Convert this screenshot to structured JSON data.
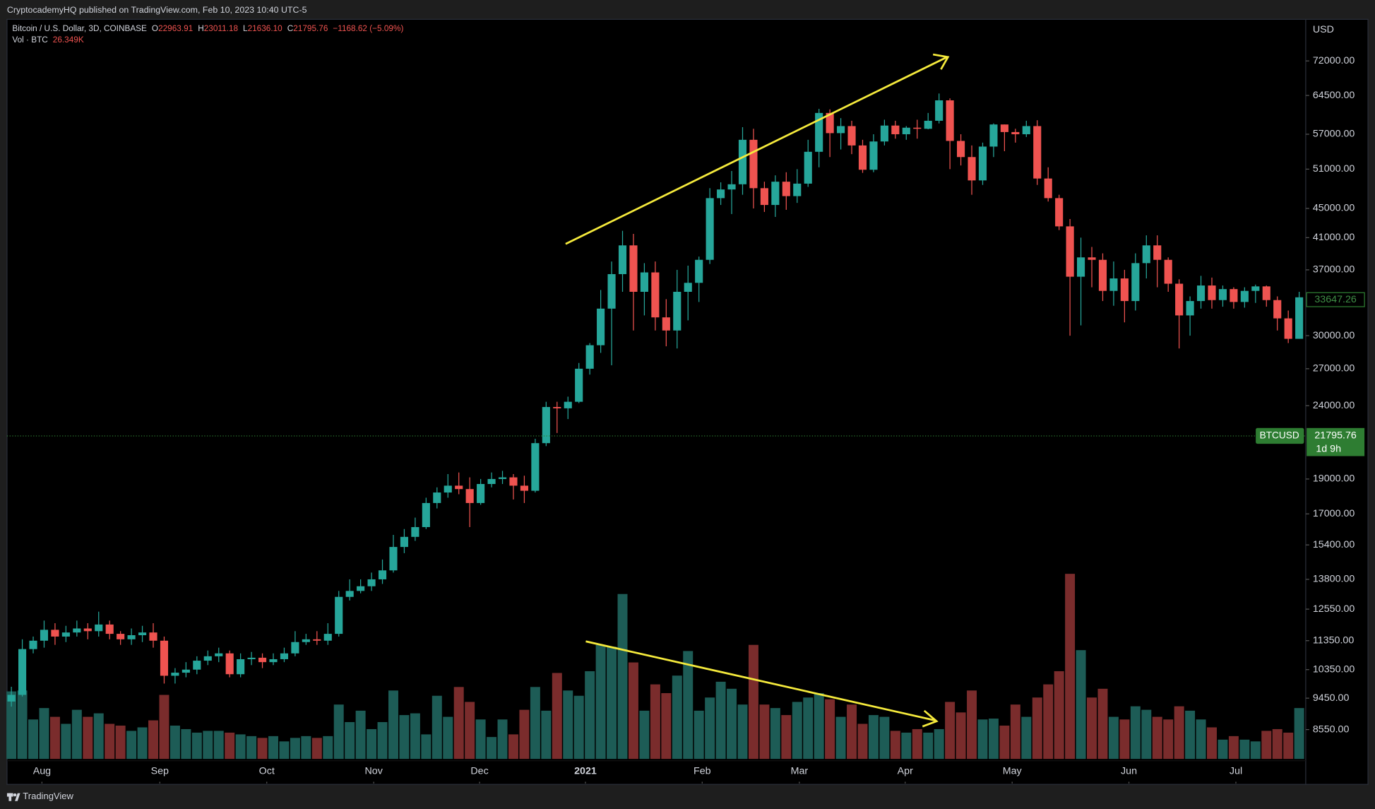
{
  "chart_data": {
    "type": "candlestick",
    "publisher_line": "CryptocademyHQ published on TradingView.com, Feb 10, 2023 10:40 UTC-5",
    "legend": {
      "title": "Bitcoin / U.S. Dollar, 3D, COINBASE",
      "open_key": "O",
      "open": "22963.91",
      "high_key": "H",
      "high": "23011.18",
      "low_key": "L",
      "low": "21636.10",
      "close_key": "C",
      "close": "21795.76",
      "change": "−1168.62 (−5.09%)",
      "volume_title": "Vol · BTC",
      "volume_value": "26.349K"
    },
    "currency": "USD",
    "symbol": "BTCUSD",
    "last_price": 21795.76,
    "countdown": "1d 9h",
    "crosshair_price": 33647.26,
    "footer": "TradingView",
    "log_scale": true,
    "up_color": "#26a69a",
    "down_color": "#ef5350",
    "volume_up_color": "#1d5c56",
    "volume_down_color": "#7a2c2c",
    "xlim": [
      -0.4,
      118.6
    ],
    "xticks": [
      {
        "value": 2.8,
        "label": "Aug"
      },
      {
        "value": 13.6,
        "label": "Sep"
      },
      {
        "value": 23.4,
        "label": "Oct"
      },
      {
        "value": 33.2,
        "label": "Nov"
      },
      {
        "value": 42.9,
        "label": "Dec"
      },
      {
        "value": 52.6,
        "label": "2021"
      },
      {
        "value": 63.3,
        "label": "Feb"
      },
      {
        "value": 72.2,
        "label": "Mar"
      },
      {
        "value": 81.9,
        "label": "Apr"
      },
      {
        "value": 91.7,
        "label": "May"
      },
      {
        "value": 102.4,
        "label": "Jun"
      },
      {
        "value": 112.2,
        "label": "Jul"
      }
    ],
    "ylim": [
      7200,
      82200
    ],
    "yticks": [
      {
        "value": 72000,
        "label": "72000.00"
      },
      {
        "value": 64500,
        "label": "64500.00"
      },
      {
        "value": 57000,
        "label": "57000.00"
      },
      {
        "value": 51000,
        "label": "51000.00"
      },
      {
        "value": 45000,
        "label": "45000.00"
      },
      {
        "value": 41000,
        "label": "41000.00"
      },
      {
        "value": 37000,
        "label": "37000.00"
      },
      {
        "value": 30000,
        "label": "30000.00"
      },
      {
        "value": 27000,
        "label": "27000.00"
      },
      {
        "value": 24000,
        "label": "24000.00"
      },
      {
        "value": 19000,
        "label": "19000.00"
      },
      {
        "value": 17000,
        "label": "17000.00"
      },
      {
        "value": 15400,
        "label": "15400.00"
      },
      {
        "value": 13800,
        "label": "13800.00"
      },
      {
        "value": 12550,
        "label": "12550.00"
      },
      {
        "value": 11350,
        "label": "11350.00"
      },
      {
        "value": 10350,
        "label": "10350.00"
      },
      {
        "value": 9450,
        "label": "9450.00"
      },
      {
        "value": 8550,
        "label": "8550.00"
      }
    ],
    "open": [
      9350,
      9550,
      11050,
      11350,
      11750,
      11500,
      11650,
      11800,
      11700,
      11950,
      11600,
      11400,
      11550,
      11650,
      11350,
      10150,
      10250,
      10350,
      10650,
      10800,
      10900,
      10200,
      10700,
      10750,
      10600,
      10700,
      10900,
      11300,
      11400,
      11350,
      11600,
      13050,
      13300,
      13500,
      13800,
      14200,
      15300,
      15800,
      16300,
      17600,
      18200,
      18600,
      18400,
      17600,
      18700,
      19000,
      19100,
      18600,
      18300,
      21300,
      23900,
      23800,
      24300,
      27000,
      29100,
      32700,
      36500,
      40000,
      34500,
      36700,
      31800,
      30500,
      34500,
      35500,
      38200,
      46500,
      47800,
      48600,
      56000,
      48000,
      45500,
      49000,
      46800,
      48700,
      53900,
      61000,
      57200,
      58500,
      55000,
      50900,
      55700,
      58600,
      57000,
      58200,
      58000,
      59500,
      63500,
      55800,
      53000,
      49200,
      54800,
      58800,
      57400,
      57000,
      58500,
      49500,
      46500,
      42500,
      36200,
      38500,
      38200,
      34600,
      36000,
      33500,
      37800,
      40000,
      38200,
      35400,
      32000,
      33500,
      35200,
      33600,
      34800,
      33400,
      34600,
      35100,
      33600,
      31700,
      29700
    ],
    "high": [
      9800,
      11400,
      11500,
      12100,
      12000,
      11900,
      12100,
      12000,
      12450,
      12100,
      11700,
      11800,
      11900,
      12000,
      11500,
      10400,
      10600,
      10800,
      11000,
      11100,
      11000,
      10900,
      10950,
      10900,
      10900,
      11100,
      11700,
      11600,
      11700,
      12000,
      13300,
      13800,
      13800,
      14100,
      14700,
      15900,
      16200,
      16800,
      17900,
      18500,
      19300,
      19400,
      19100,
      19000,
      19400,
      19500,
      19300,
      19200,
      21600,
      24300,
      24300,
      24700,
      27500,
      29300,
      34700,
      38000,
      41900,
      41500,
      37800,
      38000,
      33700,
      37000,
      37500,
      38600,
      48000,
      48900,
      50700,
      58300,
      58000,
      49000,
      50000,
      50500,
      51000,
      56000,
      61800,
      61700,
      60000,
      59500,
      56000,
      57000,
      59700,
      59500,
      58500,
      59700,
      61000,
      64900,
      63900,
      57000,
      55000,
      55500,
      59000,
      58800,
      58000,
      59500,
      59600,
      51300,
      47000,
      43500,
      41000,
      39800,
      39000,
      38000,
      37000,
      39000,
      41300,
      41300,
      38500,
      35900,
      34000,
      36300,
      36100,
      35200,
      35000,
      35000,
      35300,
      35200,
      34000,
      32500,
      34500
    ],
    "low": [
      9200,
      9500,
      10900,
      11100,
      11200,
      11300,
      11500,
      11400,
      11500,
      11400,
      11200,
      11200,
      11300,
      11100,
      9900,
      9900,
      10100,
      10200,
      10500,
      10600,
      10100,
      10100,
      10500,
      10400,
      10500,
      10600,
      10800,
      11200,
      11200,
      11200,
      11500,
      12900,
      13200,
      13300,
      13600,
      14100,
      15000,
      15600,
      16200,
      17300,
      17900,
      18100,
      16300,
      17500,
      18500,
      18700,
      17800,
      17600,
      18200,
      21100,
      22000,
      23000,
      24200,
      26500,
      28400,
      27300,
      34500,
      30500,
      32000,
      30500,
      29000,
      28800,
      31500,
      33400,
      37700,
      45500,
      44200,
      47000,
      45000,
      44500,
      43800,
      44800,
      45800,
      48200,
      51300,
      53000,
      54300,
      53500,
      50400,
      50500,
      55000,
      56200,
      56000,
      56200,
      57900,
      59000,
      51000,
      51600,
      47000,
      48500,
      53000,
      54000,
      55500,
      56500,
      48500,
      46000,
      42000,
      30000,
      31000,
      35000,
      33500,
      33000,
      31300,
      32500,
      36000,
      35000,
      34500,
      28800,
      30000,
      32700,
      32700,
      32900,
      32700,
      32800,
      33300,
      32900,
      30500,
      29300,
      29700
    ],
    "close": [
      9550,
      11050,
      11350,
      11750,
      11500,
      11650,
      11800,
      11700,
      11950,
      11600,
      11400,
      11550,
      11650,
      11350,
      10150,
      10250,
      10350,
      10650,
      10800,
      10900,
      10200,
      10700,
      10750,
      10600,
      10700,
      10900,
      11300,
      11400,
      11350,
      11600,
      13050,
      13300,
      13500,
      13800,
      14200,
      15300,
      15800,
      16300,
      17600,
      18200,
      18600,
      18400,
      17600,
      18700,
      19000,
      19100,
      18600,
      18300,
      21300,
      23900,
      23800,
      24300,
      27000,
      29100,
      32700,
      36500,
      40000,
      34500,
      36700,
      31800,
      30500,
      34500,
      35500,
      38200,
      46500,
      47800,
      48600,
      56000,
      48000,
      45500,
      49000,
      46800,
      48700,
      53900,
      61000,
      57200,
      58500,
      55000,
      50900,
      55700,
      58600,
      57000,
      58200,
      58000,
      59500,
      63500,
      55800,
      53000,
      49200,
      54800,
      58800,
      57400,
      57000,
      58500,
      49500,
      46500,
      42500,
      36200,
      38500,
      38200,
      34600,
      36000,
      33500,
      37800,
      40000,
      38200,
      35400,
      32000,
      33500,
      35200,
      33600,
      34800,
      33400,
      34600,
      35100,
      33600,
      31700,
      29700,
      33900
    ],
    "volume": [
      38500,
      39000,
      22500,
      29000,
      24000,
      20000,
      28000,
      24000,
      26000,
      20000,
      19000,
      16000,
      18000,
      22000,
      36500,
      19000,
      17000,
      15000,
      16000,
      16000,
      15000,
      14000,
      13000,
      12000,
      13000,
      10000,
      12000,
      13000,
      12000,
      13000,
      31000,
      21000,
      27500,
      17000,
      21000,
      39000,
      25000,
      26000,
      14000,
      36000,
      24000,
      41000,
      32500,
      22500,
      12500,
      22500,
      14000,
      28000,
      41000,
      27500,
      49000,
      39000,
      36000,
      50000,
      65000,
      64000,
      94000,
      55000,
      27500,
      42500,
      37500,
      47500,
      61500,
      27500,
      35000,
      44000,
      40000,
      31000,
      65000,
      31000,
      29000,
      25000,
      32500,
      35000,
      37500,
      34000,
      24000,
      31000,
      20000,
      25000,
      24000,
      16000,
      15000,
      17000,
      15000,
      17000,
      32500,
      26500,
      39000,
      22500,
      23000,
      19000,
      31000,
      24000,
      35000,
      42500,
      50000,
      105500,
      62000,
      35000,
      40000,
      24000,
      22500,
      30000,
      28000,
      24000,
      22500,
      30000,
      27500,
      22500,
      18000,
      11000,
      13000,
      11000,
      10000,
      16000,
      17000,
      15000,
      29000
    ]
  }
}
